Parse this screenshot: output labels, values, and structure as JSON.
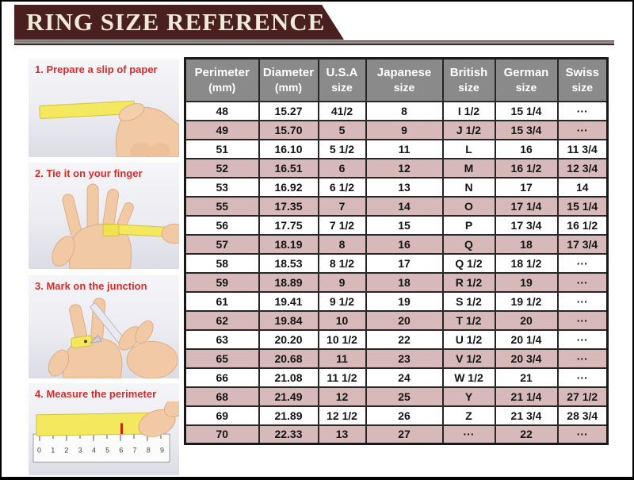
{
  "page": {
    "title": "RING SIZE REFERENCE"
  },
  "colors": {
    "banner_bg": "#491f1f",
    "banner_text": "#f2ead9",
    "table_header_bg": "#8a8a8a",
    "row_alt_pink": "#d8b9b9",
    "row_white": "#ffffff",
    "step_label_red": "#d42b2b",
    "paper_slip_yellow": "#f4e95e"
  },
  "sidebar": {
    "steps": [
      {
        "label": "1. Prepare a slip of paper"
      },
      {
        "label": "2. Tie it on your finger"
      },
      {
        "label": "3. Mark on the junction"
      },
      {
        "label": "4. Measure the perimeter",
        "ruler_numbers": "0 1 2 3 4 5 6 7 8 9"
      }
    ]
  },
  "table": {
    "columns": [
      {
        "line1": "Perimeter",
        "line2": "(mm)"
      },
      {
        "line1": "Diameter",
        "line2": "(mm)"
      },
      {
        "line1": "U.S.A",
        "line2": "size"
      },
      {
        "line1": "Japanese",
        "line2": "size"
      },
      {
        "line1": "British",
        "line2": "size"
      },
      {
        "line1": "German",
        "line2": "size"
      },
      {
        "line1": "Swiss",
        "line2": "size"
      }
    ],
    "rows": [
      [
        "48",
        "15.27",
        "41/2",
        "8",
        "I 1/2",
        "15 1/4",
        "···"
      ],
      [
        "49",
        "15.70",
        "5",
        "9",
        "J 1/2",
        "15 3/4",
        "···"
      ],
      [
        "51",
        "16.10",
        "5 1/2",
        "11",
        "L",
        "16",
        "11 3/4"
      ],
      [
        "52",
        "16.51",
        "6",
        "12",
        "M",
        "16 1/2",
        "12 3/4"
      ],
      [
        "53",
        "16.92",
        "6 1/2",
        "13",
        "N",
        "17",
        "14"
      ],
      [
        "55",
        "17.35",
        "7",
        "14",
        "O",
        "17 1/4",
        "15 1/4"
      ],
      [
        "56",
        "17.75",
        "7 1/2",
        "15",
        "P",
        "17 3/4",
        "16 1/2"
      ],
      [
        "57",
        "18.19",
        "8",
        "16",
        "Q",
        "18",
        "17 3/4"
      ],
      [
        "58",
        "18.53",
        "8 1/2",
        "17",
        "Q 1/2",
        "18 1/2",
        "···"
      ],
      [
        "59",
        "18.89",
        "9",
        "18",
        "R 1/2",
        "19",
        "···"
      ],
      [
        "61",
        "19.41",
        "9 1/2",
        "19",
        "S 1/2",
        "19 1/2",
        "···"
      ],
      [
        "62",
        "19.84",
        "10",
        "20",
        "T 1/2",
        "20",
        "···"
      ],
      [
        "63",
        "20.20",
        "10 1/2",
        "22",
        "U 1/2",
        "20 1/4",
        "···"
      ],
      [
        "65",
        "20.68",
        "11",
        "23",
        "V 1/2",
        "20 3/4",
        "···"
      ],
      [
        "66",
        "21.08",
        "11 1/2",
        "24",
        "W 1/2",
        "21",
        "···"
      ],
      [
        "68",
        "21.49",
        "12",
        "25",
        "Y",
        "21 1/4",
        "27 1/2"
      ],
      [
        "69",
        "21.89",
        "12 1/2",
        "26",
        "Z",
        "21 3/4",
        "28 3/4"
      ],
      [
        "70",
        "22.33",
        "13",
        "27",
        "···",
        "22",
        "···"
      ]
    ]
  }
}
